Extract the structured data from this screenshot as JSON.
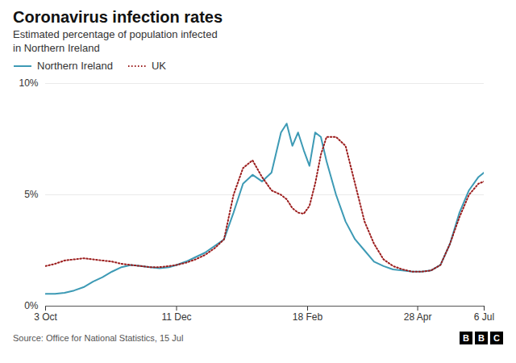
{
  "chart_data": {
    "type": "line",
    "title": "Coronavirus infection rates",
    "subtitle": [
      "Estimated percentage of population infected",
      "in Northern Ireland"
    ],
    "source": "Source: Office for National Statistics, 15 Jul",
    "annotations": [
      "B",
      "B",
      "C"
    ],
    "x": [
      0,
      5,
      10,
      15,
      20,
      25,
      30,
      35,
      40,
      45,
      50,
      55,
      60,
      65,
      69,
      74,
      79,
      84,
      89,
      94,
      99,
      104,
      109,
      114,
      119,
      124,
      127,
      130,
      133,
      136,
      139,
      142,
      145,
      148,
      153,
      158,
      163,
      168,
      173,
      178,
      183,
      188,
      193,
      198,
      203,
      208,
      213,
      218,
      223,
      228,
      231
    ],
    "series": [
      {
        "name": "Northern Ireland",
        "color": "#3d9ab5",
        "line_style": "solid",
        "values": [
          0.55,
          0.55,
          0.6,
          0.7,
          0.85,
          1.1,
          1.3,
          1.55,
          1.75,
          1.85,
          1.8,
          1.75,
          1.7,
          1.75,
          1.85,
          2.0,
          2.2,
          2.4,
          2.7,
          3.0,
          4.2,
          5.5,
          5.9,
          5.6,
          6.0,
          7.8,
          8.2,
          7.2,
          7.8,
          7.0,
          6.3,
          7.8,
          7.6,
          6.5,
          5.0,
          3.8,
          3.0,
          2.5,
          2.0,
          1.8,
          1.65,
          1.6,
          1.55,
          1.55,
          1.6,
          1.85,
          2.8,
          4.2,
          5.2,
          5.8,
          6.0
        ]
      },
      {
        "name": "UK",
        "color": "#9b1c1c",
        "line_style": "dotted",
        "values": [
          1.8,
          1.9,
          2.05,
          2.1,
          2.15,
          2.1,
          2.05,
          2.0,
          1.9,
          1.85,
          1.8,
          1.75,
          1.75,
          1.8,
          1.85,
          1.95,
          2.1,
          2.3,
          2.6,
          3.0,
          5.0,
          6.2,
          6.55,
          5.8,
          5.2,
          5.0,
          4.8,
          4.4,
          4.2,
          4.15,
          4.5,
          5.5,
          6.8,
          7.6,
          7.6,
          7.2,
          5.5,
          3.8,
          2.8,
          2.1,
          1.8,
          1.65,
          1.55,
          1.55,
          1.6,
          1.85,
          2.8,
          4.0,
          5.0,
          5.5,
          5.6
        ]
      }
    ],
    "xlim": [
      0,
      231
    ],
    "xticks": [
      {
        "value": 0,
        "label": "3 Oct"
      },
      {
        "value": 69,
        "label": "11 Dec"
      },
      {
        "value": 138,
        "label": "18 Feb"
      },
      {
        "value": 196,
        "label": "28 Apr"
      },
      {
        "value": 231,
        "label": "6 Jul"
      }
    ],
    "ylim": [
      0,
      10
    ],
    "yticks": [
      {
        "value": 0,
        "label": "0%"
      },
      {
        "value": 5,
        "label": "5%"
      },
      {
        "value": 10,
        "label": "10%"
      }
    ],
    "grid": true,
    "legend": "upper left"
  }
}
